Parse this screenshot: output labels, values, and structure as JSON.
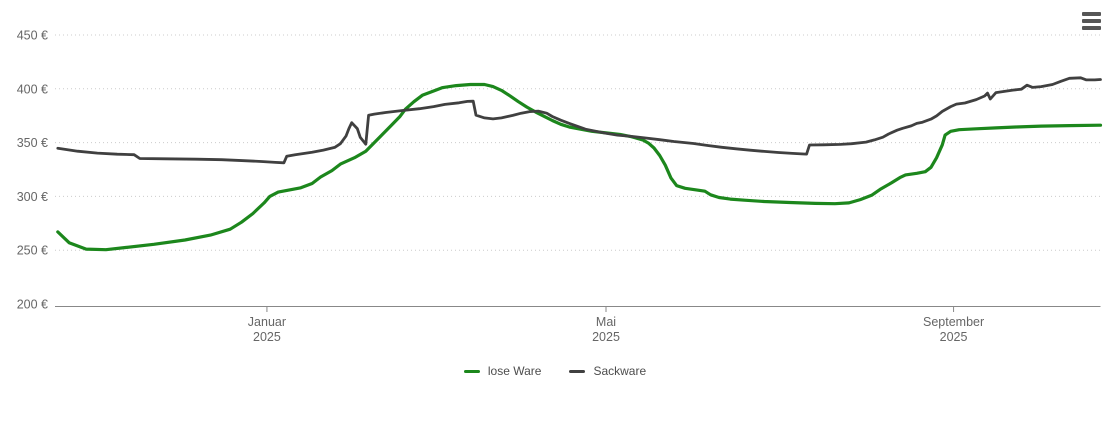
{
  "chart_data": {
    "type": "line",
    "title": "",
    "background_color": "#ffffff",
    "grid": "dotted-horizontal",
    "legend_position": "bottom-center",
    "colors": {
      "grid": "#cccccc",
      "axis_line": "#888888",
      "axis_label_text": "#666666",
      "legend_text": "#4d4d4d",
      "menu_icon": "#565656"
    },
    "y_axis": {
      "min": 200,
      "max": 450,
      "step": 50,
      "suffix": " €",
      "ticks": [
        {
          "value": 450,
          "label": "450 €"
        },
        {
          "value": 400,
          "label": "400 €"
        },
        {
          "value": 350,
          "label": "350 €"
        },
        {
          "value": 300,
          "label": "300 €"
        },
        {
          "value": 250,
          "label": "250 €"
        },
        {
          "value": 200,
          "label": "200 €"
        }
      ]
    },
    "x_axis": {
      "domain": [
        "2024-10-18",
        "2025-10-23"
      ],
      "ticks": [
        {
          "date": "2025-01-01",
          "line1": "Januar",
          "line2": "2025"
        },
        {
          "date": "2025-05-01",
          "line1": "Mai",
          "line2": "2025"
        },
        {
          "date": "2025-09-01",
          "line1": "September",
          "line2": "2025"
        }
      ]
    },
    "series": [
      {
        "name": "lose Ware",
        "color": "#1c871c",
        "unit": "€",
        "points": [
          [
            "2024-10-19",
            267
          ],
          [
            "2024-10-23",
            257
          ],
          [
            "2024-10-29",
            251
          ],
          [
            "2024-11-05",
            250.5
          ],
          [
            "2024-11-12",
            252.5
          ],
          [
            "2024-11-22",
            255.5
          ],
          [
            "2024-12-03",
            259.5
          ],
          [
            "2024-12-12",
            264
          ],
          [
            "2024-12-19",
            269.5
          ],
          [
            "2024-12-23",
            276
          ],
          [
            "2024-12-27",
            284
          ],
          [
            "2024-12-31",
            294
          ],
          [
            "2025-01-02",
            300
          ],
          [
            "2025-01-05",
            304
          ],
          [
            "2025-01-09",
            306
          ],
          [
            "2025-01-13",
            308
          ],
          [
            "2025-01-17",
            312
          ],
          [
            "2025-01-20",
            318
          ],
          [
            "2025-01-24",
            324
          ],
          [
            "2025-01-27",
            330
          ],
          [
            "2025-02-01",
            336
          ],
          [
            "2025-02-05",
            342
          ],
          [
            "2025-02-08",
            350
          ],
          [
            "2025-02-11",
            358
          ],
          [
            "2025-02-14",
            366
          ],
          [
            "2025-02-17",
            374
          ],
          [
            "2025-02-19",
            381
          ],
          [
            "2025-02-22",
            388
          ],
          [
            "2025-02-25",
            394
          ],
          [
            "2025-03-01",
            398
          ],
          [
            "2025-03-04",
            401
          ],
          [
            "2025-03-09",
            403
          ],
          [
            "2025-03-14",
            404
          ],
          [
            "2025-03-19",
            404
          ],
          [
            "2025-03-22",
            402
          ],
          [
            "2025-03-25",
            398.5
          ],
          [
            "2025-03-28",
            393.5
          ],
          [
            "2025-03-31",
            388
          ],
          [
            "2025-04-03",
            383
          ],
          [
            "2025-04-06",
            378.5
          ],
          [
            "2025-04-09",
            374.5
          ],
          [
            "2025-04-12",
            370.5
          ],
          [
            "2025-04-15",
            367
          ],
          [
            "2025-04-18",
            364.5
          ],
          [
            "2025-04-22",
            362.5
          ],
          [
            "2025-04-26",
            360.5
          ],
          [
            "2025-05-01",
            359
          ],
          [
            "2025-05-06",
            357.5
          ],
          [
            "2025-05-10",
            355.5
          ],
          [
            "2025-05-14",
            352.5
          ],
          [
            "2025-05-16",
            349.5
          ],
          [
            "2025-05-18",
            345
          ],
          [
            "2025-05-20",
            338
          ],
          [
            "2025-05-22",
            329
          ],
          [
            "2025-05-24",
            317
          ],
          [
            "2025-05-26",
            310
          ],
          [
            "2025-05-29",
            307.5
          ],
          [
            "2025-06-02",
            306
          ],
          [
            "2025-06-05",
            304.8
          ],
          [
            "2025-06-07",
            301.5
          ],
          [
            "2025-06-10",
            299
          ],
          [
            "2025-06-14",
            297.5
          ],
          [
            "2025-06-19",
            296.5
          ],
          [
            "2025-06-26",
            295.3
          ],
          [
            "2025-07-05",
            294.3
          ],
          [
            "2025-07-14",
            293.5
          ],
          [
            "2025-07-21",
            293.2
          ],
          [
            "2025-07-26",
            294
          ],
          [
            "2025-07-30",
            297
          ],
          [
            "2025-08-03",
            301
          ],
          [
            "2025-08-06",
            306.5
          ],
          [
            "2025-08-10",
            312.5
          ],
          [
            "2025-08-13",
            317.5
          ],
          [
            "2025-08-15",
            320
          ],
          [
            "2025-08-19",
            321.5
          ],
          [
            "2025-08-22",
            323
          ],
          [
            "2025-08-24",
            327
          ],
          [
            "2025-08-26",
            336
          ],
          [
            "2025-08-28",
            348
          ],
          [
            "2025-08-29",
            357
          ],
          [
            "2025-08-31",
            360.5
          ],
          [
            "2025-09-03",
            362
          ],
          [
            "2025-09-09",
            362.8
          ],
          [
            "2025-09-16",
            363.7
          ],
          [
            "2025-09-23",
            364.5
          ],
          [
            "2025-10-02",
            365.3
          ],
          [
            "2025-10-12",
            365.8
          ],
          [
            "2025-10-23",
            366.2
          ]
        ]
      },
      {
        "name": "Sackware",
        "color": "#404040",
        "unit": "€",
        "points": [
          [
            "2024-10-19",
            344.7
          ],
          [
            "2024-10-26",
            342
          ],
          [
            "2024-11-02",
            340.2
          ],
          [
            "2024-11-09",
            339.2
          ],
          [
            "2024-11-15",
            338.8
          ],
          [
            "2024-11-17",
            335.2
          ],
          [
            "2024-11-26",
            334.9
          ],
          [
            "2024-12-07",
            334.6
          ],
          [
            "2024-12-16",
            334.1
          ],
          [
            "2024-12-24",
            333.2
          ],
          [
            "2024-12-30",
            332.4
          ],
          [
            "2025-01-04",
            331.6
          ],
          [
            "2025-01-07",
            331.2
          ],
          [
            "2025-01-08",
            337.3
          ],
          [
            "2025-01-11",
            338.8
          ],
          [
            "2025-01-17",
            341
          ],
          [
            "2025-01-21",
            343
          ],
          [
            "2025-01-25",
            345.5
          ],
          [
            "2025-01-27",
            349
          ],
          [
            "2025-01-29",
            356
          ],
          [
            "2025-01-30",
            363
          ],
          [
            "2025-01-31",
            368.5
          ],
          [
            "2025-02-02",
            363
          ],
          [
            "2025-02-03",
            355
          ],
          [
            "2025-02-05",
            348.5
          ],
          [
            "2025-02-06",
            375.5
          ],
          [
            "2025-02-08",
            376.5
          ],
          [
            "2025-02-12",
            378
          ],
          [
            "2025-02-18",
            379.8
          ],
          [
            "2025-02-24",
            381.5
          ],
          [
            "2025-03-01",
            383.5
          ],
          [
            "2025-03-05",
            385.5
          ],
          [
            "2025-03-10",
            387
          ],
          [
            "2025-03-13",
            388.3
          ],
          [
            "2025-03-15",
            388.5
          ],
          [
            "2025-03-16",
            375.5
          ],
          [
            "2025-03-19",
            373
          ],
          [
            "2025-03-22",
            372
          ],
          [
            "2025-03-25",
            373
          ],
          [
            "2025-03-29",
            375.3
          ],
          [
            "2025-04-01",
            377.3
          ],
          [
            "2025-04-04",
            378.8
          ],
          [
            "2025-04-07",
            379.3
          ],
          [
            "2025-04-10",
            377.3
          ],
          [
            "2025-04-12",
            374.3
          ],
          [
            "2025-04-15",
            370.8
          ],
          [
            "2025-04-18",
            367.8
          ],
          [
            "2025-04-21",
            365
          ],
          [
            "2025-04-24",
            362.3
          ],
          [
            "2025-04-28",
            360.2
          ],
          [
            "2025-05-01",
            358.6
          ],
          [
            "2025-05-05",
            357
          ],
          [
            "2025-05-10",
            355.8
          ],
          [
            "2025-05-15",
            354.3
          ],
          [
            "2025-05-20",
            352.7
          ],
          [
            "2025-05-25",
            351
          ],
          [
            "2025-06-01",
            349.2
          ],
          [
            "2025-06-06",
            347.3
          ],
          [
            "2025-06-11",
            345.6
          ],
          [
            "2025-06-16",
            344.2
          ],
          [
            "2025-06-21",
            342.9
          ],
          [
            "2025-06-26",
            341.8
          ],
          [
            "2025-07-01",
            340.8
          ],
          [
            "2025-07-06",
            340
          ],
          [
            "2025-07-10",
            339.4
          ],
          [
            "2025-07-11",
            339.3
          ],
          [
            "2025-07-12",
            347.8
          ],
          [
            "2025-07-17",
            348
          ],
          [
            "2025-07-23",
            348.3
          ],
          [
            "2025-07-27",
            349
          ],
          [
            "2025-08-01",
            350.5
          ],
          [
            "2025-08-04",
            352.5
          ],
          [
            "2025-08-07",
            355
          ],
          [
            "2025-08-09",
            358
          ],
          [
            "2025-08-12",
            361.5
          ],
          [
            "2025-08-14",
            363.3
          ],
          [
            "2025-08-17",
            365.5
          ],
          [
            "2025-08-19",
            367.8
          ],
          [
            "2025-08-21",
            369
          ],
          [
            "2025-08-24",
            371.8
          ],
          [
            "2025-08-26",
            374.8
          ],
          [
            "2025-08-28",
            379
          ],
          [
            "2025-08-31",
            383.5
          ],
          [
            "2025-09-02",
            385.8
          ],
          [
            "2025-09-05",
            386.8
          ],
          [
            "2025-09-09",
            390
          ],
          [
            "2025-09-12",
            393.3
          ],
          [
            "2025-09-13",
            396
          ],
          [
            "2025-09-14",
            390.5
          ],
          [
            "2025-09-16",
            396.5
          ],
          [
            "2025-09-19",
            397.6
          ],
          [
            "2025-09-22",
            398.8
          ],
          [
            "2025-09-25",
            399.6
          ],
          [
            "2025-09-27",
            403.3
          ],
          [
            "2025-09-29",
            401.3
          ],
          [
            "2025-10-02",
            402
          ],
          [
            "2025-10-06",
            404
          ],
          [
            "2025-10-09",
            407
          ],
          [
            "2025-10-12",
            409.8
          ],
          [
            "2025-10-16",
            410.2
          ],
          [
            "2025-10-18",
            408.3
          ],
          [
            "2025-10-21",
            408.3
          ],
          [
            "2025-10-23",
            408.6
          ]
        ]
      }
    ],
    "legend": {
      "items": [
        "lose Ware",
        "Sackware"
      ]
    },
    "menu_icon": "hamburger-menu-icon"
  }
}
